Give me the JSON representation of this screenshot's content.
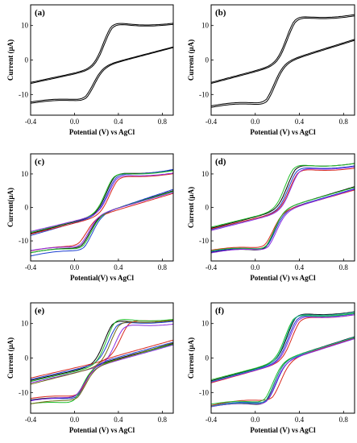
{
  "colors": {
    "black": "#000000",
    "blue": "#1a3fd0",
    "red": "#d8261c",
    "green": "#1fbf2a",
    "purple": "#8a2be2",
    "olive": "#6f6a14",
    "teal": "#1aa6a0"
  },
  "chart_data": [
    {
      "type": "line",
      "panel_label": "(a)",
      "xlabel": "Potential (V) vs AgCl",
      "ylabel": "Current (µA)",
      "xlim": [
        -0.4,
        0.9
      ],
      "ylim": [
        -16,
        16
      ],
      "xticks": [
        "-0.4",
        "0.0",
        "0.4",
        "0.8"
      ],
      "yticks": [
        "10",
        "0",
        "-10"
      ],
      "series": [
        {
          "color": "#000000",
          "anodic_peak": [
            0.33,
            11.8
          ],
          "cathodic_peak": [
            0.1,
            -12.2
          ],
          "start": [
            -0.4,
            -6.5
          ],
          "end": [
            0.9,
            3.8
          ]
        },
        {
          "color": "#000000",
          "anodic_peak": [
            0.34,
            11.4
          ],
          "cathodic_peak": [
            0.11,
            -12.6
          ],
          "start": [
            -0.4,
            -6.8
          ],
          "end": [
            0.9,
            3.6
          ]
        }
      ]
    },
    {
      "type": "line",
      "panel_label": "(b)",
      "xlabel": "Potential (V) vs AgCl",
      "ylabel": "Current (µA)",
      "xlim": [
        -0.4,
        0.9
      ],
      "ylim": [
        -16,
        16
      ],
      "xticks": [
        "-0.4",
        "0.0",
        "0.4",
        "0.8"
      ],
      "yticks": [
        "10",
        "0",
        "-10"
      ],
      "series": [
        {
          "color": "#000000",
          "anodic_peak": [
            0.35,
            13.6
          ],
          "cathodic_peak": [
            0.1,
            -13.4
          ],
          "start": [
            -0.4,
            -6.5
          ],
          "end": [
            0.9,
            6.0
          ]
        },
        {
          "color": "#000000",
          "anodic_peak": [
            0.36,
            13.2
          ],
          "cathodic_peak": [
            0.11,
            -13.9
          ],
          "start": [
            -0.4,
            -6.8
          ],
          "end": [
            0.9,
            5.7
          ]
        }
      ]
    },
    {
      "type": "line",
      "panel_label": "(c)",
      "xlabel": "Potential(V) vs AgCl",
      "ylabel": "Current(µA)",
      "xlim": [
        -0.4,
        0.9
      ],
      "ylim": [
        -16,
        16
      ],
      "xticks": [
        "-0.4",
        "0.0",
        "0.4",
        "0.8"
      ],
      "yticks": [
        "10",
        "0",
        "-10"
      ],
      "series": [
        {
          "color": "#000000",
          "anodic_peak": [
            0.36,
            11.0
          ],
          "cathodic_peak": [
            0.07,
            -12.8
          ],
          "start": [
            -0.4,
            -7.8
          ],
          "end": [
            0.9,
            5.0
          ]
        },
        {
          "color": "#1a3fd0",
          "anodic_peak": [
            0.37,
            10.6
          ],
          "cathodic_peak": [
            0.09,
            -13.6
          ],
          "start": [
            -0.4,
            -8.4
          ],
          "end": [
            0.9,
            5.4
          ]
        },
        {
          "color": "#d8261c",
          "anodic_peak": [
            0.39,
            10.0
          ],
          "cathodic_peak": [
            0.04,
            -12.0
          ],
          "start": [
            -0.4,
            -8.0
          ],
          "end": [
            0.9,
            4.2
          ]
        },
        {
          "color": "#1fbf2a",
          "anodic_peak": [
            0.35,
            10.9
          ],
          "cathodic_peak": [
            0.08,
            -13.1
          ],
          "start": [
            -0.4,
            -7.5
          ],
          "end": [
            0.9,
            4.8
          ]
        },
        {
          "color": "#8a2be2",
          "anodic_peak": [
            0.38,
            10.3
          ],
          "cathodic_peak": [
            0.06,
            -12.5
          ],
          "start": [
            -0.4,
            -7.2
          ],
          "end": [
            0.9,
            4.5
          ]
        }
      ]
    },
    {
      "type": "line",
      "panel_label": "(d)",
      "xlabel": "Potential (V) vs AgCl",
      "ylabel": "Current (µA)",
      "xlim": [
        -0.4,
        0.9
      ],
      "ylim": [
        -16,
        16
      ],
      "xticks": [
        "-0.4",
        "0.0",
        "0.4",
        "0.8"
      ],
      "yticks": [
        "10",
        "0",
        "-10"
      ],
      "series": [
        {
          "color": "#000000",
          "anodic_peak": [
            0.36,
            13.5
          ],
          "cathodic_peak": [
            0.1,
            -13.8
          ],
          "start": [
            -0.4,
            -6.2
          ],
          "end": [
            0.9,
            6.2
          ]
        },
        {
          "color": "#1a3fd0",
          "anodic_peak": [
            0.37,
            12.8
          ],
          "cathodic_peak": [
            0.11,
            -13.3
          ],
          "start": [
            -0.4,
            -6.6
          ],
          "end": [
            0.9,
            5.6
          ]
        },
        {
          "color": "#d8261c",
          "anodic_peak": [
            0.38,
            12.2
          ],
          "cathodic_peak": [
            0.09,
            -12.9
          ],
          "start": [
            -0.4,
            -6.4
          ],
          "end": [
            0.9,
            5.2
          ]
        },
        {
          "color": "#1fbf2a",
          "anodic_peak": [
            0.34,
            13.7
          ],
          "cathodic_peak": [
            0.1,
            -13.5
          ],
          "start": [
            -0.4,
            -5.9
          ],
          "end": [
            0.9,
            6.0
          ]
        },
        {
          "color": "#8a2be2",
          "anodic_peak": [
            0.39,
            12.5
          ],
          "cathodic_peak": [
            0.12,
            -13.6
          ],
          "start": [
            -0.4,
            -6.9
          ],
          "end": [
            0.9,
            5.4
          ]
        }
      ]
    },
    {
      "type": "line",
      "panel_label": "(e)",
      "xlabel": "Potential (V) vs AgCl",
      "ylabel": "Current (µA)",
      "xlim": [
        -0.4,
        0.9
      ],
      "ylim": [
        -16,
        16
      ],
      "xticks": [
        "-0.4",
        "0.0",
        "0.4",
        "0.8"
      ],
      "yticks": [
        "10",
        "0",
        "-10"
      ],
      "series": [
        {
          "color": "#000000",
          "anodic_peak": [
            0.34,
            11.8
          ],
          "cathodic_peak": [
            0.02,
            -12.2
          ],
          "start": [
            -0.4,
            -6.5
          ],
          "end": [
            0.9,
            4.2
          ]
        },
        {
          "color": "#1a3fd0",
          "anodic_peak": [
            0.38,
            11.2
          ],
          "cathodic_peak": [
            0.03,
            -12.6
          ],
          "start": [
            -0.4,
            -6.2
          ],
          "end": [
            0.9,
            4.6
          ]
        },
        {
          "color": "#d8261c",
          "anodic_peak": [
            0.49,
            11.6
          ],
          "cathodic_peak": [
            0.04,
            -11.8
          ],
          "start": [
            -0.4,
            -5.8
          ],
          "end": [
            0.9,
            5.2
          ]
        },
        {
          "color": "#1fbf2a",
          "anodic_peak": [
            0.36,
            12.4
          ],
          "cathodic_peak": [
            0.0,
            -13.8
          ],
          "start": [
            -0.4,
            -6.8
          ],
          "end": [
            0.9,
            4.0
          ]
        },
        {
          "color": "#8a2be2",
          "anodic_peak": [
            0.44,
            10.4
          ],
          "cathodic_peak": [
            0.02,
            -12.0
          ],
          "start": [
            -0.4,
            -7.2
          ],
          "end": [
            0.9,
            3.8
          ]
        },
        {
          "color": "#6f6a14",
          "anodic_peak": [
            0.4,
            11.4
          ],
          "cathodic_peak": [
            0.03,
            -12.9
          ],
          "start": [
            -0.4,
            -7.6
          ],
          "end": [
            0.9,
            4.4
          ]
        }
      ]
    },
    {
      "type": "line",
      "panel_label": "(f)",
      "xlabel": "Potential (V) vs AgCl",
      "ylabel": "Current (µA)",
      "xlim": [
        -0.4,
        0.9
      ],
      "ylim": [
        -16,
        16
      ],
      "xticks": [
        "-0.4",
        "0.0",
        "0.4",
        "0.8"
      ],
      "yticks": [
        "10",
        "0",
        "-10"
      ],
      "series": [
        {
          "color": "#000000",
          "anodic_peak": [
            0.36,
            13.8
          ],
          "cathodic_peak": [
            0.1,
            -14.6
          ],
          "start": [
            -0.4,
            -6.6
          ],
          "end": [
            0.9,
            6.2
          ]
        },
        {
          "color": "#1a3fd0",
          "anodic_peak": [
            0.37,
            13.2
          ],
          "cathodic_peak": [
            0.12,
            -14.0
          ],
          "start": [
            -0.4,
            -6.9
          ],
          "end": [
            0.9,
            5.8
          ]
        },
        {
          "color": "#d8261c",
          "anodic_peak": [
            0.4,
            12.6
          ],
          "cathodic_peak": [
            0.16,
            -13.2
          ],
          "start": [
            -0.4,
            -7.2
          ],
          "end": [
            0.9,
            5.9
          ]
        },
        {
          "color": "#1fbf2a",
          "anodic_peak": [
            0.34,
            13.4
          ],
          "cathodic_peak": [
            0.09,
            -13.8
          ],
          "start": [
            -0.4,
            -6.3
          ],
          "end": [
            0.9,
            6.0
          ]
        },
        {
          "color": "#8a2be2",
          "anodic_peak": [
            0.38,
            12.9
          ],
          "cathodic_peak": [
            0.11,
            -14.4
          ],
          "start": [
            -0.4,
            -7.0
          ],
          "end": [
            0.9,
            5.6
          ]
        },
        {
          "color": "#1aa6a0",
          "anodic_peak": [
            0.35,
            13.6
          ],
          "cathodic_peak": [
            0.1,
            -14.2
          ],
          "start": [
            -0.4,
            -6.8
          ],
          "end": [
            0.9,
            6.1
          ]
        }
      ]
    }
  ]
}
